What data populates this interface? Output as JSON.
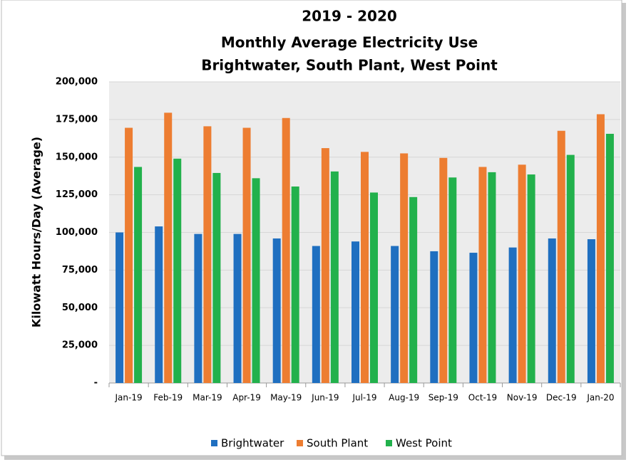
{
  "chart_data": {
    "type": "bar",
    "title": [
      "2019 - 2020",
      "Monthly Average Electricity Use",
      "Brightwater, South Plant, West Point"
    ],
    "y_label": "Kilowatt Hours/Day (Average)",
    "categories": [
      "Jan-19",
      "Feb-19",
      "Mar-19",
      "Apr-19",
      "May-19",
      "Jun-19",
      "Jul-19",
      "Aug-19",
      "Sep-19",
      "Oct-19",
      "Nov-19",
      "Dec-19",
      "Jan-20"
    ],
    "series": [
      {
        "name": "Brightwater",
        "color": "#1f6fc0",
        "values": [
          100000,
          104000,
          99000,
          99000,
          96000,
          91000,
          94000,
          91000,
          87500,
          86500,
          90000,
          96000,
          95500
        ]
      },
      {
        "name": "South Plant",
        "color": "#ed7d31",
        "values": [
          169500,
          179500,
          170500,
          169500,
          176000,
          156000,
          153500,
          152500,
          149500,
          143500,
          145000,
          167500,
          178500
        ]
      },
      {
        "name": "West Point",
        "color": "#22b14c",
        "values": [
          143500,
          149000,
          139500,
          136000,
          130500,
          140500,
          126500,
          123500,
          136500,
          140000,
          138500,
          151500,
          165500
        ]
      }
    ],
    "ylim": [
      0,
      200000
    ],
    "yticks": [
      {
        "value": 0,
        "label": "-"
      },
      {
        "value": 25000,
        "label": "25,000"
      },
      {
        "value": 50000,
        "label": "50,000"
      },
      {
        "value": 75000,
        "label": "75,000"
      },
      {
        "value": 100000,
        "label": "100,000"
      },
      {
        "value": 125000,
        "label": "125,000"
      },
      {
        "value": 150000,
        "label": "150,000"
      },
      {
        "value": 175000,
        "label": "175,000"
      },
      {
        "value": 200000,
        "label": "200,000"
      }
    ],
    "grid": true,
    "legend": "bottom"
  }
}
